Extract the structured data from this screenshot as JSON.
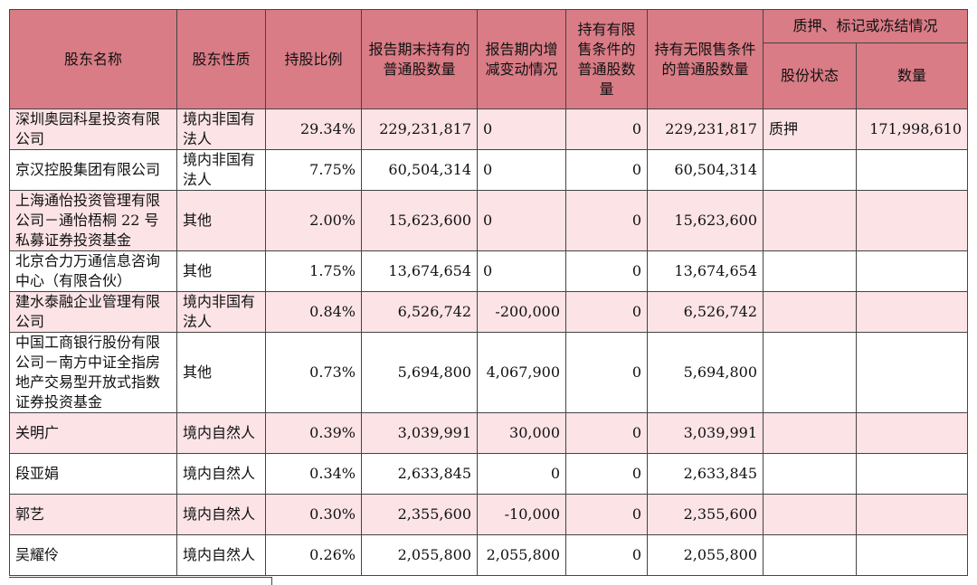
{
  "headers": {
    "name": "股东名称",
    "nature": "股东性质",
    "ratio": "持股比例",
    "end_shares": "报告期末持有的普通股数量",
    "change": "报告期内增减变动情况",
    "restricted": "持有有限售条件的普通股数量",
    "unrestricted": "持有无限售条件的普通股数量",
    "pledge_group": "质押、标记或冻结情况",
    "pledge_status": "股份状态",
    "pledge_qty": "数量"
  },
  "rows": [
    {
      "name": "深圳奥园科星投资有限公司",
      "nature": "境内非国有法人",
      "ratio": "29.34%",
      "end_shares": "229,231,817",
      "change": "0",
      "restricted": "0",
      "unrestricted": "229,231,817",
      "pledge_status": "质押",
      "pledge_qty": "171,998,610"
    },
    {
      "name": "京汉控股集团有限公司",
      "nature": "境内非国有法人",
      "ratio": "7.75%",
      "end_shares": "60,504,314",
      "change": "0",
      "restricted": "0",
      "unrestricted": "60,504,314",
      "pledge_status": "",
      "pledge_qty": ""
    },
    {
      "name": "上海通怡投资管理有限公司－通怡梧桐 22 号私募证券投资基金",
      "nature": "其他",
      "ratio": "2.00%",
      "end_shares": "15,623,600",
      "change": "0",
      "restricted": "0",
      "unrestricted": "15,623,600",
      "pledge_status": "",
      "pledge_qty": ""
    },
    {
      "name": "北京合力万通信息咨询中心（有限合伙）",
      "nature": "其他",
      "ratio": "1.75%",
      "end_shares": "13,674,654",
      "change": "0",
      "restricted": "0",
      "unrestricted": "13,674,654",
      "pledge_status": "",
      "pledge_qty": ""
    },
    {
      "name": "建水泰融企业管理有限公司",
      "nature": "境内非国有法人",
      "ratio": "0.84%",
      "end_shares": "6,526,742",
      "change": "-200,000",
      "restricted": "0",
      "unrestricted": "6,526,742",
      "pledge_status": "",
      "pledge_qty": ""
    },
    {
      "name": "中国工商银行股份有限公司－南方中证全指房地产交易型开放式指数证券投资基金",
      "nature": "其他",
      "ratio": "0.73%",
      "end_shares": "5,694,800",
      "change": "4,067,900",
      "restricted": "0",
      "unrestricted": "5,694,800",
      "pledge_status": "",
      "pledge_qty": ""
    },
    {
      "name": "关明广",
      "nature": "境内自然人",
      "ratio": "0.39%",
      "end_shares": "3,039,991",
      "change": "30,000",
      "restricted": "0",
      "unrestricted": "3,039,991",
      "pledge_status": "",
      "pledge_qty": ""
    },
    {
      "name": "段亚娟",
      "nature": "境内自然人",
      "ratio": "0.34%",
      "end_shares": "2,633,845",
      "change": "0",
      "restricted": "0",
      "unrestricted": "2,633,845",
      "pledge_status": "",
      "pledge_qty": ""
    },
    {
      "name": "郭艺",
      "nature": "境内自然人",
      "ratio": "0.30%",
      "end_shares": "2,355,600",
      "change": "-10,000",
      "restricted": "0",
      "unrestricted": "2,355,600",
      "pledge_status": "",
      "pledge_qty": ""
    },
    {
      "name": "吴耀伶",
      "nature": "境内自然人",
      "ratio": "0.26%",
      "end_shares": "2,055,800",
      "change": "2,055,800",
      "restricted": "0",
      "unrestricted": "2,055,800",
      "pledge_status": "",
      "pledge_qty": ""
    }
  ]
}
